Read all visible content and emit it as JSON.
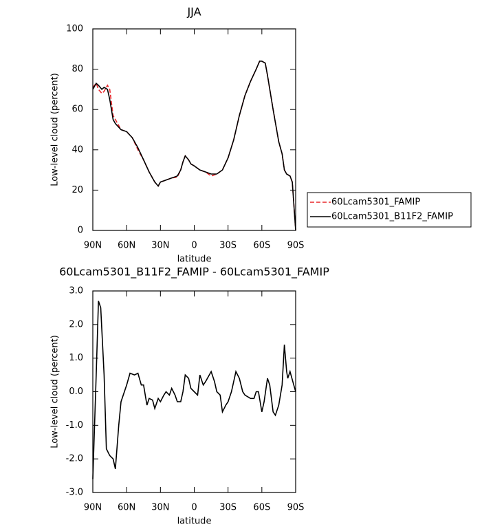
{
  "chart_data": [
    {
      "type": "line",
      "title": "JJA",
      "x_label": "latitude",
      "y_label": "Low-level cloud (percent)",
      "x": [
        90,
        87,
        85,
        82,
        80,
        77,
        75,
        72,
        70,
        65,
        60,
        55,
        50,
        45,
        40,
        35,
        32,
        30,
        25,
        20,
        15,
        12,
        10,
        8,
        5,
        3,
        0,
        -5,
        -10,
        -15,
        -20,
        -25,
        -30,
        -35,
        -40,
        -45,
        -50,
        -55,
        -58,
        -60,
        -63,
        -65,
        -70,
        -75,
        -78,
        -80,
        -82,
        -85,
        -87,
        -90
      ],
      "series": [
        {
          "name": "60Lcam5301_FAMIP",
          "color": "#e8262a",
          "dash": true,
          "values": [
            71,
            73,
            70,
            68,
            69,
            72,
            70,
            57,
            55,
            50,
            49,
            46,
            40,
            35,
            29,
            24,
            22,
            24,
            25,
            26,
            26.5,
            30,
            34,
            37,
            35,
            33,
            32,
            30,
            29,
            27,
            28,
            30,
            36,
            45,
            57,
            67,
            74,
            80,
            84,
            84,
            83,
            77,
            60,
            44,
            38,
            30,
            28,
            27,
            24,
            0
          ]
        },
        {
          "name": "60Lcam5301_B11F2_FAMIP",
          "color": "#000000",
          "dash": false,
          "values": [
            70,
            73,
            72,
            70,
            71,
            70,
            65,
            55,
            53,
            50,
            49,
            46,
            41,
            35,
            29,
            24,
            22,
            24,
            25,
            26,
            27,
            30,
            34,
            37,
            35,
            33,
            32,
            30,
            29,
            28,
            28,
            30,
            36,
            45,
            57,
            67,
            74,
            80,
            84,
            84,
            83,
            77,
            60,
            44,
            38,
            30,
            28,
            27,
            24,
            0
          ]
        }
      ],
      "xlim": [
        90,
        -90
      ],
      "xticks": [
        {
          "value": 90,
          "label": "90N"
        },
        {
          "value": 60,
          "label": "60N"
        },
        {
          "value": 30,
          "label": "30N"
        },
        0,
        {
          "value": -30,
          "label": "30S"
        },
        {
          "value": -60,
          "label": "60S"
        },
        {
          "value": -90,
          "label": "90S"
        }
      ],
      "ylim": [
        0,
        100
      ],
      "yticks": [
        0,
        20,
        40,
        60,
        80,
        100
      ],
      "legend": "right"
    },
    {
      "type": "line",
      "title": "60Lcam5301_B11F2_FAMIP - 60Lcam5301_FAMIP",
      "x_label": "latitude",
      "y_label": "Low-level cloud (percent)",
      "x": [
        90,
        87,
        85,
        83,
        80,
        78,
        75,
        72,
        70,
        67,
        65,
        60,
        57,
        53,
        50,
        47,
        45,
        42,
        40,
        37,
        35,
        32,
        30,
        27,
        25,
        22,
        20,
        17,
        15,
        12,
        10,
        8,
        5,
        3,
        0,
        -3,
        -5,
        -8,
        -10,
        -15,
        -18,
        -20,
        -23,
        -25,
        -28,
        -30,
        -33,
        -37,
        -40,
        -43,
        -45,
        -50,
        -53,
        -55,
        -57,
        -60,
        -62,
        -65,
        -67,
        -70,
        -72,
        -75,
        -78,
        -80,
        -82,
        -83,
        -85,
        -90
      ],
      "series": [
        {
          "name": null,
          "color": "#000000",
          "dash": false,
          "values": [
            -2.6,
            0.5,
            2.7,
            2.5,
            0.5,
            -1.7,
            -1.9,
            -2.0,
            -2.3,
            -1.0,
            -0.3,
            0.2,
            0.55,
            0.5,
            0.55,
            0.2,
            0.2,
            -0.4,
            -0.2,
            -0.25,
            -0.5,
            -0.2,
            -0.3,
            -0.1,
            0.0,
            -0.1,
            0.1,
            -0.1,
            -0.3,
            -0.3,
            0.0,
            0.5,
            0.4,
            0.1,
            0.0,
            -0.1,
            0.5,
            0.2,
            0.3,
            0.6,
            0.3,
            0.0,
            -0.1,
            -0.6,
            -0.4,
            -0.3,
            0.0,
            0.6,
            0.4,
            0.0,
            -0.1,
            -0.2,
            -0.2,
            0.0,
            0.0,
            -0.6,
            -0.3,
            0.4,
            0.2,
            -0.6,
            -0.7,
            -0.4,
            0.2,
            1.4,
            0.6,
            0.4,
            0.6,
            0.0
          ]
        }
      ],
      "xlim": [
        90,
        -90
      ],
      "xticks": [
        {
          "value": 90,
          "label": "90N"
        },
        {
          "value": 60,
          "label": "60N"
        },
        {
          "value": 30,
          "label": "30N"
        },
        0,
        {
          "value": -30,
          "label": "30S"
        },
        {
          "value": -60,
          "label": "60S"
        },
        {
          "value": -90,
          "label": "90S"
        }
      ],
      "ylim": [
        -3,
        3
      ],
      "yticks": [
        {
          "value": -3,
          "label": "-3.0"
        },
        {
          "value": -2,
          "label": "-2.0"
        },
        {
          "value": -1,
          "label": "-1.0"
        },
        {
          "value": 0,
          "label": "0.0"
        },
        {
          "value": 1,
          "label": "1.0"
        },
        {
          "value": 2,
          "label": "2.0"
        },
        {
          "value": 3,
          "label": "3.0"
        }
      ]
    }
  ]
}
